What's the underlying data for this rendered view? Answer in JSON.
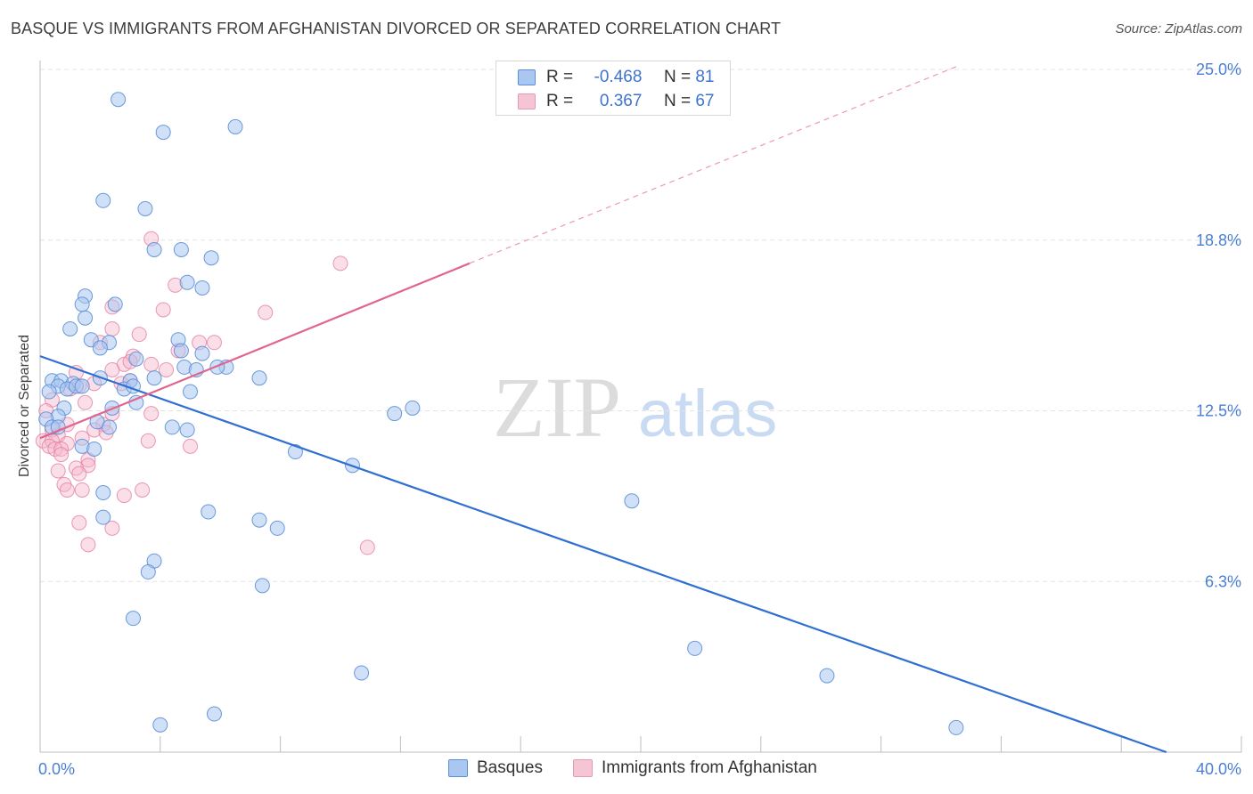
{
  "title": "BASQUE VS IMMIGRANTS FROM AFGHANISTAN DIVORCED OR SEPARATED CORRELATION CHART",
  "source": "Source: ZipAtlas.com",
  "watermark": {
    "zip": "ZIP",
    "atlas": "atlas"
  },
  "legend": {
    "r_label": "R =",
    "n_label": "N =",
    "rows": [
      {
        "r": "-0.468",
        "n": "81"
      },
      {
        "r": "0.367",
        "n": "67"
      }
    ]
  },
  "chart_data": {
    "type": "scatter",
    "title": "BASQUE VS IMMIGRANTS FROM AFGHANISTAN DIVORCED OR SEPARATED CORRELATION CHART",
    "xlabel": "",
    "ylabel": "Divorced or Separated",
    "xlim": [
      0,
      40
    ],
    "ylim": [
      0,
      25
    ],
    "x_tick_labels": [
      "0.0%",
      "40.0%"
    ],
    "y_ticks": [
      {
        "value": 6.25,
        "label": "6.3%"
      },
      {
        "value": 12.5,
        "label": "12.5%"
      },
      {
        "value": 18.75,
        "label": "18.8%"
      },
      {
        "value": 25,
        "label": "25.0%"
      }
    ],
    "grid": true,
    "legend_position": "top-center",
    "colors": {
      "basques_fill": "#a9c7f0",
      "basques_stroke": "#5b8fd9",
      "basques_line": "#2f6fd1",
      "afghan_fill": "#f6b8cb",
      "afghan_stroke": "#e57ea0",
      "afghan_line": "#e0668f"
    },
    "series": [
      {
        "name": "Basques",
        "trend": {
          "x0": 0,
          "y0": 14.5,
          "x1": 37.5,
          "y1": 0
        },
        "points": [
          [
            2.6,
            23.9
          ],
          [
            4.1,
            22.7
          ],
          [
            6.5,
            22.9
          ],
          [
            2.1,
            20.2
          ],
          [
            3.5,
            19.9
          ],
          [
            3.8,
            18.4
          ],
          [
            4.7,
            18.4
          ],
          [
            5.7,
            18.1
          ],
          [
            5.4,
            17.0
          ],
          [
            4.9,
            17.2
          ],
          [
            1.5,
            16.7
          ],
          [
            1.4,
            16.4
          ],
          [
            2.5,
            16.4
          ],
          [
            1.5,
            15.9
          ],
          [
            1.0,
            15.5
          ],
          [
            1.7,
            15.1
          ],
          [
            2.3,
            15.0
          ],
          [
            2.0,
            14.8
          ],
          [
            4.6,
            15.1
          ],
          [
            4.7,
            14.7
          ],
          [
            5.4,
            14.6
          ],
          [
            3.2,
            14.4
          ],
          [
            4.8,
            14.1
          ],
          [
            5.2,
            14.0
          ],
          [
            6.2,
            14.1
          ],
          [
            5.9,
            14.1
          ],
          [
            7.3,
            13.7
          ],
          [
            3.0,
            13.6
          ],
          [
            3.8,
            13.7
          ],
          [
            2.0,
            13.7
          ],
          [
            0.4,
            13.6
          ],
          [
            0.7,
            13.6
          ],
          [
            1.1,
            13.5
          ],
          [
            0.6,
            13.4
          ],
          [
            0.9,
            13.3
          ],
          [
            1.2,
            13.4
          ],
          [
            1.4,
            13.4
          ],
          [
            0.3,
            13.2
          ],
          [
            2.8,
            13.3
          ],
          [
            3.1,
            13.4
          ],
          [
            5.0,
            13.2
          ],
          [
            3.2,
            12.8
          ],
          [
            2.4,
            12.6
          ],
          [
            0.8,
            12.6
          ],
          [
            0.6,
            12.3
          ],
          [
            1.9,
            12.1
          ],
          [
            0.2,
            12.2
          ],
          [
            0.4,
            11.9
          ],
          [
            0.6,
            11.9
          ],
          [
            2.3,
            11.9
          ],
          [
            4.4,
            11.9
          ],
          [
            4.9,
            11.8
          ],
          [
            1.4,
            11.2
          ],
          [
            1.8,
            11.1
          ],
          [
            8.5,
            11.0
          ],
          [
            10.4,
            10.5
          ],
          [
            11.8,
            12.4
          ],
          [
            12.4,
            12.6
          ],
          [
            19.7,
            9.2
          ],
          [
            2.1,
            9.5
          ],
          [
            5.6,
            8.8
          ],
          [
            7.3,
            8.5
          ],
          [
            7.9,
            8.2
          ],
          [
            2.1,
            8.6
          ],
          [
            3.8,
            7.0
          ],
          [
            3.6,
            6.6
          ],
          [
            7.4,
            6.1
          ],
          [
            3.1,
            4.9
          ],
          [
            21.8,
            3.8
          ],
          [
            10.7,
            2.9
          ],
          [
            26.2,
            2.8
          ],
          [
            5.8,
            1.4
          ],
          [
            4.0,
            1.0
          ],
          [
            30.5,
            0.9
          ]
        ]
      },
      {
        "name": "Immigrants from Afghanistan",
        "trend": {
          "x0": 0,
          "y0": 11.5,
          "x1": 14.3,
          "y1": 17.9,
          "dash_to_x": 30.5,
          "dash_to_y": 25.1
        },
        "points": [
          [
            3.7,
            18.8
          ],
          [
            10.0,
            17.9
          ],
          [
            4.5,
            17.1
          ],
          [
            4.1,
            16.2
          ],
          [
            7.5,
            16.1
          ],
          [
            2.4,
            16.3
          ],
          [
            2.4,
            15.5
          ],
          [
            3.3,
            15.3
          ],
          [
            5.8,
            15.0
          ],
          [
            5.3,
            15.0
          ],
          [
            2.0,
            15.0
          ],
          [
            4.6,
            14.7
          ],
          [
            3.1,
            14.5
          ],
          [
            2.8,
            14.2
          ],
          [
            3.0,
            14.3
          ],
          [
            3.7,
            14.2
          ],
          [
            4.2,
            14.0
          ],
          [
            2.4,
            14.0
          ],
          [
            1.2,
            13.9
          ],
          [
            3.0,
            13.6
          ],
          [
            2.7,
            13.5
          ],
          [
            1.8,
            13.5
          ],
          [
            1.0,
            13.3
          ],
          [
            1.3,
            13.4
          ],
          [
            1.5,
            12.8
          ],
          [
            0.4,
            12.9
          ],
          [
            0.2,
            12.5
          ],
          [
            2.4,
            12.4
          ],
          [
            3.7,
            12.4
          ],
          [
            0.9,
            12.0
          ],
          [
            2.1,
            12.0
          ],
          [
            0.4,
            11.8
          ],
          [
            1.8,
            11.8
          ],
          [
            2.2,
            11.7
          ],
          [
            0.6,
            11.6
          ],
          [
            1.4,
            11.5
          ],
          [
            0.1,
            11.4
          ],
          [
            0.4,
            11.4
          ],
          [
            0.9,
            11.3
          ],
          [
            3.6,
            11.4
          ],
          [
            0.3,
            11.2
          ],
          [
            0.5,
            11.1
          ],
          [
            0.7,
            11.1
          ],
          [
            5.0,
            11.2
          ],
          [
            0.7,
            10.9
          ],
          [
            1.6,
            10.7
          ],
          [
            1.6,
            10.5
          ],
          [
            1.2,
            10.4
          ],
          [
            0.6,
            10.3
          ],
          [
            1.3,
            10.2
          ],
          [
            0.8,
            9.8
          ],
          [
            1.4,
            9.6
          ],
          [
            0.9,
            9.6
          ],
          [
            3.4,
            9.6
          ],
          [
            2.8,
            9.4
          ],
          [
            1.3,
            8.4
          ],
          [
            2.4,
            8.2
          ],
          [
            1.6,
            7.6
          ],
          [
            10.9,
            7.5
          ]
        ]
      }
    ]
  },
  "bottom_legend": {
    "basques": "Basques",
    "afghan": "Immigrants from Afghanistan"
  }
}
